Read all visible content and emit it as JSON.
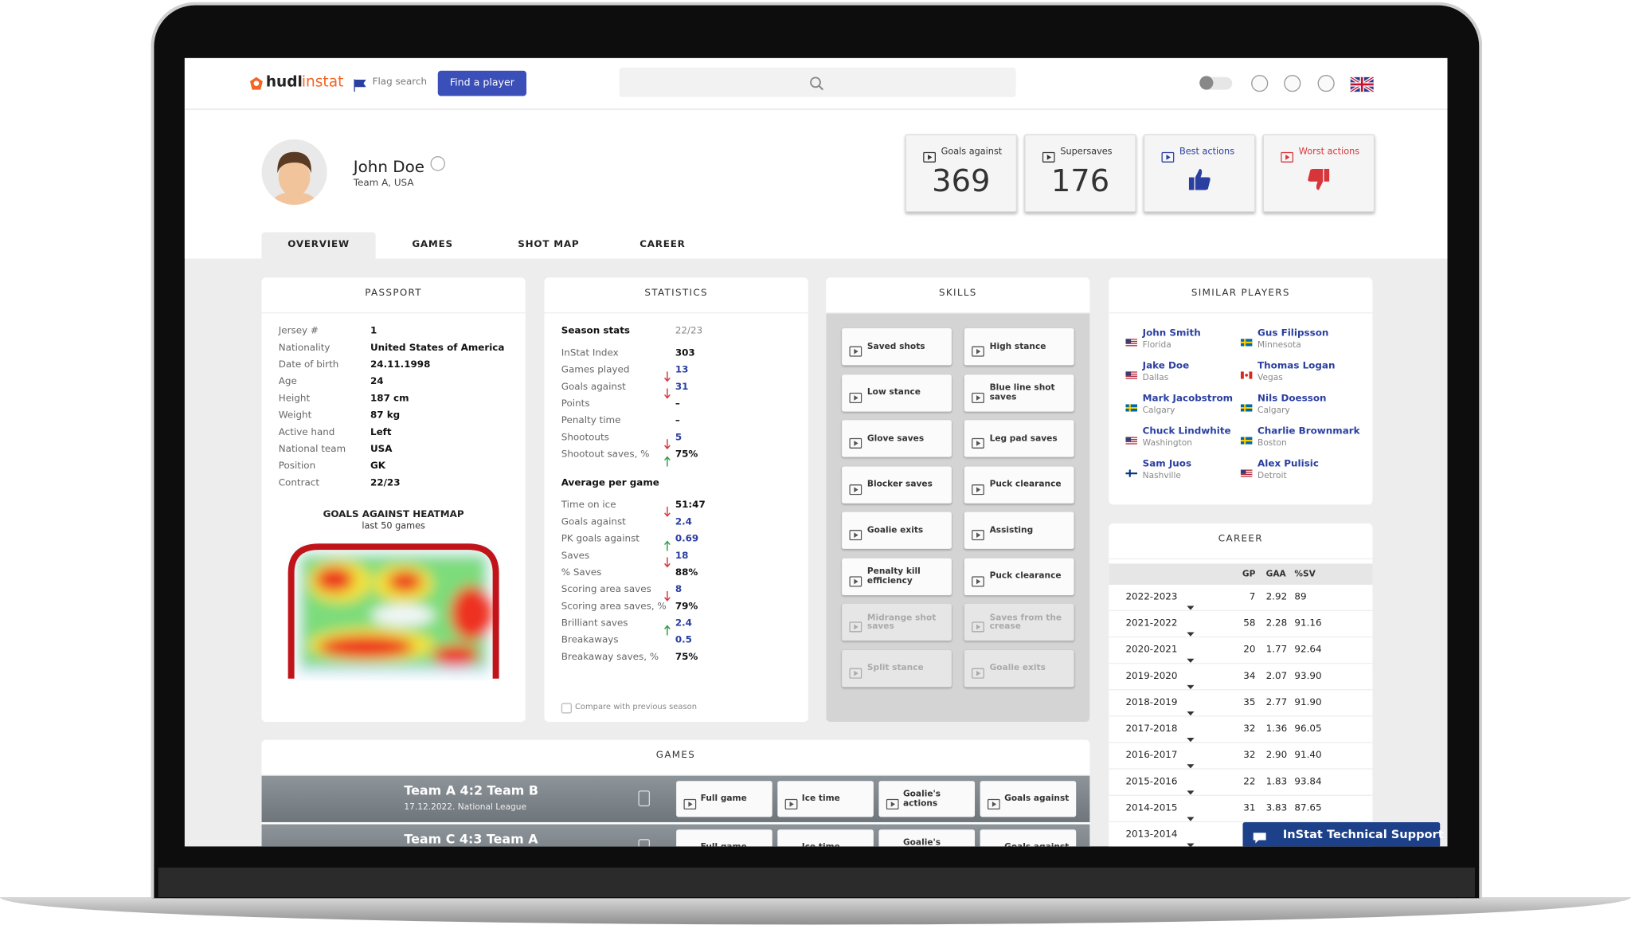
{
  "header": {
    "logo_a": "hudl",
    "logo_b": "instat",
    "flag_search": "Flag search",
    "find_player": "Find a player"
  },
  "player": {
    "name": "John Doe",
    "team": "Team A,  USA"
  },
  "cards": [
    {
      "label": "Goals against",
      "value": 369,
      "color": "#333333"
    },
    {
      "label": "Supersaves",
      "value": 176,
      "color": "#333333"
    },
    {
      "label": "Best actions",
      "icon": "up",
      "color": "#2a3fa0"
    },
    {
      "label": "Worst actions",
      "icon": "down",
      "color": "#d8353b"
    }
  ],
  "tabs": [
    "OVERVIEW",
    "GAMES",
    "SHOT MAP",
    "CAREER"
  ],
  "passport": {
    "title": "PASSPORT",
    "rows": [
      [
        "Jersey #",
        "1"
      ],
      [
        "Nationality",
        "United States of America"
      ],
      [
        "Date of birth",
        "24.11.1998"
      ],
      [
        "Age",
        "24"
      ],
      [
        "Height",
        "187 cm"
      ],
      [
        "Weight",
        "87 kg"
      ],
      [
        "Active hand",
        "Left"
      ],
      [
        "National team",
        "USA"
      ],
      [
        "Position",
        "GK"
      ],
      [
        "Contract",
        "22/23"
      ]
    ],
    "heatmap_title": "GOALS AGAINST HEATMAP",
    "heatmap_subtitle": "last 50 games"
  },
  "statistics": {
    "title": "STATISTICS",
    "season_label": "Season stats",
    "season": "22/23",
    "rows": [
      {
        "label": "InStat Index",
        "value": "303"
      },
      {
        "label": "Games played",
        "value": "13",
        "trend": "down",
        "blue": true
      },
      {
        "label": "Goals against",
        "value": "31",
        "trend": "down",
        "blue": true
      },
      {
        "label": "Points",
        "value": "–"
      },
      {
        "label": "Penalty time",
        "value": "–"
      },
      {
        "label": "Shootouts",
        "value": "5",
        "trend": "down",
        "blue": true
      },
      {
        "label": "Shootout saves, %",
        "value": "75%",
        "trend": "up"
      }
    ],
    "avg_label": "Average per game",
    "avg_rows": [
      {
        "label": "Time on ice",
        "value": "51:47",
        "trend": "down"
      },
      {
        "label": "Goals against",
        "value": "2.4",
        "blue": true
      },
      {
        "label": "PK goals against",
        "value": "0.69",
        "trend": "up",
        "blue": true
      },
      {
        "label": "Saves",
        "value": "18",
        "trend": "down",
        "blue": true
      },
      {
        "label": "% Saves",
        "value": "88%"
      },
      {
        "label": "Scoring area saves",
        "value": "8",
        "trend": "down",
        "blue": true
      },
      {
        "label": "Scoring area saves, %",
        "value": "79%"
      },
      {
        "label": "Brilliant saves",
        "value": "2.4",
        "trend": "up",
        "blue": true
      },
      {
        "label": "Breakaways",
        "value": "0.5",
        "blue": true
      },
      {
        "label": "Breakaway saves, %",
        "value": "75%"
      }
    ],
    "compare": "Compare with previous season"
  },
  "skills": {
    "title": "SKILLS",
    "items": [
      {
        "label": "Saved shots",
        "enabled": true
      },
      {
        "label": "High stance",
        "enabled": true
      },
      {
        "label": "Low stance",
        "enabled": true
      },
      {
        "label": "Blue line shot saves",
        "enabled": true
      },
      {
        "label": "Glove saves",
        "enabled": true
      },
      {
        "label": "Leg pad saves",
        "enabled": true
      },
      {
        "label": "Blocker saves",
        "enabled": true
      },
      {
        "label": "Puck clearance",
        "enabled": true
      },
      {
        "label": "Goalie exits",
        "enabled": true
      },
      {
        "label": "Assisting",
        "enabled": true
      },
      {
        "label": "Penalty kill efficiency",
        "enabled": true
      },
      {
        "label": "Puck clearance",
        "enabled": true
      },
      {
        "label": "Midrange shot saves",
        "enabled": false
      },
      {
        "label": "Saves from the crease",
        "enabled": false
      },
      {
        "label": "Split stance",
        "enabled": false
      },
      {
        "label": "Goalie exits",
        "enabled": false
      }
    ]
  },
  "similar": {
    "title": "SIMILAR PLAYERS",
    "players": [
      {
        "name": "John Smith",
        "place": "Florida",
        "flag": "us"
      },
      {
        "name": "Gus Filipsson",
        "place": "Minnesota",
        "flag": "se"
      },
      {
        "name": "Jake Doe",
        "place": "Dallas",
        "flag": "us"
      },
      {
        "name": "Thomas Logan",
        "place": "Vegas",
        "flag": "ca"
      },
      {
        "name": "Mark Jacobstrom",
        "place": "Calgary",
        "flag": "se"
      },
      {
        "name": "Nils Doesson",
        "place": "Calgary",
        "flag": "se"
      },
      {
        "name": "Chuck Lindwhite",
        "place": "Washington",
        "flag": "us"
      },
      {
        "name": "Charlie Brownmark",
        "place": "Boston",
        "flag": "se"
      },
      {
        "name": "Sam Juos",
        "place": "Nashville",
        "flag": "fi"
      },
      {
        "name": "Alex Pulisic",
        "place": "Detroit",
        "flag": "us"
      }
    ]
  },
  "career": {
    "title": "CAREER",
    "columns": [
      "GP",
      "GAA",
      "%SV"
    ],
    "rows": [
      [
        "2022-2023",
        "7",
        "2.92",
        "89"
      ],
      [
        "2021-2022",
        "58",
        "2.28",
        "91.16"
      ],
      [
        "2020-2021",
        "20",
        "1.77",
        "92.64"
      ],
      [
        "2019-2020",
        "34",
        "2.07",
        "93.90"
      ],
      [
        "2018-2019",
        "35",
        "2.77",
        "91.90"
      ],
      [
        "2017-2018",
        "32",
        "1.36",
        "96.05"
      ],
      [
        "2016-2017",
        "32",
        "2.90",
        "91.40"
      ],
      [
        "2015-2016",
        "22",
        "1.83",
        "93.84"
      ],
      [
        "2014-2015",
        "31",
        "3.83",
        "87.65"
      ],
      [
        "2013-2014"
      ]
    ]
  },
  "games": {
    "title": "GAMES",
    "rows": [
      {
        "match": "Team A 4:2 Team B",
        "info": "17.12.2022. National League",
        "buttons": [
          "Full game",
          "Ice time",
          "Goalie's actions",
          "Goals against"
        ]
      },
      {
        "match": "Team C 4:3 Team A",
        "buttons": [
          "Full game",
          "Ice time",
          "Goalie's actions",
          "Goals against"
        ]
      }
    ]
  },
  "support": "InStat Technical Support"
}
